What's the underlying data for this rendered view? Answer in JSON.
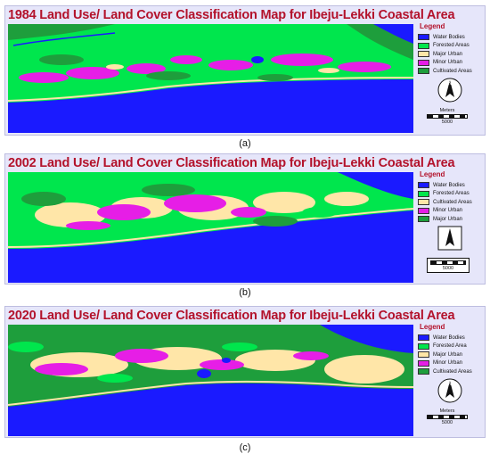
{
  "panels": [
    {
      "title": "1984 Land Use/ Land Cover Classification Map for Ibeju-Lekki Coastal Area",
      "legend_title": "Legend",
      "legend": [
        {
          "label": "Water Bodies",
          "color": "#1a1aff"
        },
        {
          "label": "Forested Areas",
          "color": "#00e64d"
        },
        {
          "label": "Major Urban",
          "color": "#ffe6a8"
        },
        {
          "label": "Minor Urban",
          "color": "#e61ee6"
        },
        {
          "label": "Cultivated Areas",
          "color": "#1e9e3c"
        }
      ],
      "scale_unit": "Meters",
      "scale_value": "5000",
      "caption": "(a)"
    },
    {
      "title": "2002 Land Use/ Land Cover Classification Map for Ibeju-Lekki Coastal Area",
      "legend_title": "Legend",
      "legend": [
        {
          "label": "Water Bodies",
          "color": "#1a1aff"
        },
        {
          "label": "Forested Areas",
          "color": "#00e64d"
        },
        {
          "label": "Cultivated Areas",
          "color": "#ffe6a8"
        },
        {
          "label": "Minor Urban",
          "color": "#e61ee6"
        },
        {
          "label": "Major Urban",
          "color": "#1e9e3c"
        }
      ],
      "scale_unit": "",
      "scale_value": "5000",
      "caption": "(b)"
    },
    {
      "title": "2020 Land Use/ Land Cover Classification Map for Ibeju-Lekki Coastal Area",
      "legend_title": "Legend",
      "legend": [
        {
          "label": "Water Bodies",
          "color": "#1a1aff"
        },
        {
          "label": "Forested Area",
          "color": "#00e64d"
        },
        {
          "label": "Major Urban",
          "color": "#ffe6a8"
        },
        {
          "label": "Minor Urban",
          "color": "#e61ee6"
        },
        {
          "label": "Cultivated Areas",
          "color": "#1e9e3c"
        }
      ],
      "scale_unit": "Meters",
      "scale_value": "5000",
      "caption": "(c)"
    }
  ]
}
